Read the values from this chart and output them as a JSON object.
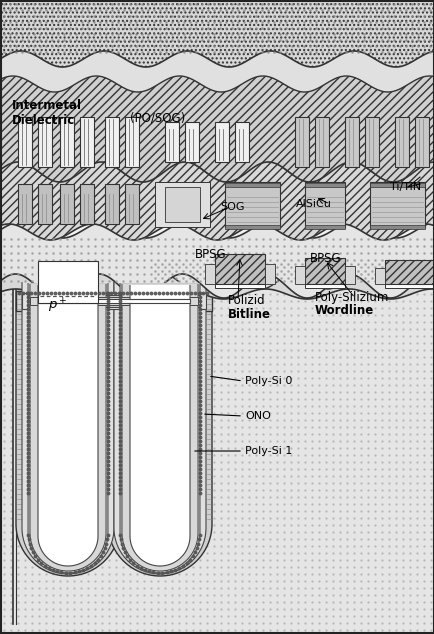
{
  "labels": {
    "intermetal_dielectric": "Intermetal\nDielectric",
    "po_sog": "(PO/SOG)",
    "sog": "SOG",
    "alsicu": "AlSiCu",
    "ti_tin": "Ti/TiN",
    "bpsg1": "BPSG",
    "bpsg2": "BPSG",
    "polizid_bitline_1": "Polizid",
    "polizid_bitline_2": "Bitline",
    "poly_si_wordline_1": "Poly-Silizium",
    "poly_si_wordline_2": "Wordline",
    "poly_si_0": "Poly-Si 0",
    "ono": "ONO",
    "poly_si_1": "Poly-Si 1"
  },
  "colors": {
    "white": "#ffffff",
    "black": "#000000",
    "light_dot": "#c8c8c8",
    "medium": "#b0b0b0",
    "hatch_bg": "#d0d0d0",
    "very_light": "#e8e8e8",
    "top_dot": "#c0c0c0"
  }
}
